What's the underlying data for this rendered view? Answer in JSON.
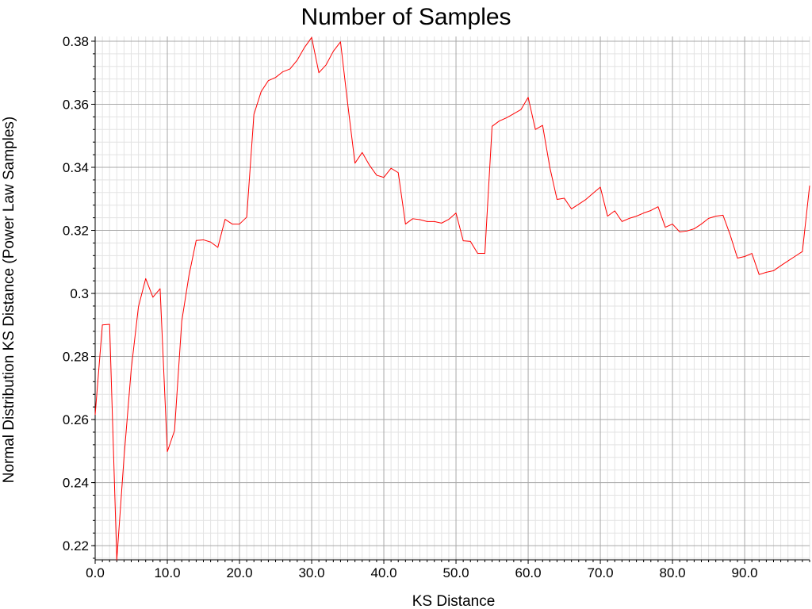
{
  "chart_data": {
    "type": "line",
    "title": "Number of Samples",
    "xlabel": "KS Distance",
    "ylabel": "Normal Distribution KS Distance (Power Law Samples)",
    "xlim": [
      0,
      99
    ],
    "ylim": [
      0.2155,
      0.3815
    ],
    "x_ticks": [
      0,
      10,
      20,
      30,
      40,
      50,
      60,
      70,
      80,
      90
    ],
    "x_tick_labels": [
      "0.0",
      "10.0",
      "20.0",
      "30.0",
      "40.0",
      "50.0",
      "60.0",
      "70.0",
      "80.0",
      "90.0"
    ],
    "y_ticks": [
      0.22,
      0.24,
      0.26,
      0.28,
      0.3,
      0.32,
      0.34,
      0.36,
      0.38
    ],
    "y_tick_labels": [
      "0.22",
      "0.24",
      "0.26",
      "0.28",
      "0.3",
      "0.32",
      "0.34",
      "0.36",
      "0.38"
    ],
    "grid": true,
    "legend": "none",
    "series": [
      {
        "color": "#ff0000",
        "x": [
          0,
          1,
          2,
          3,
          4,
          5,
          6,
          7,
          8,
          9,
          10,
          11,
          12,
          13,
          14,
          15,
          16,
          17,
          18,
          19,
          20,
          21,
          22,
          23,
          24,
          25,
          26,
          27,
          28,
          29,
          30,
          31,
          32,
          33,
          34,
          35,
          36,
          37,
          38,
          39,
          40,
          41,
          42,
          43,
          44,
          45,
          46,
          47,
          48,
          49,
          50,
          51,
          52,
          53,
          54,
          55,
          56,
          57,
          58,
          59,
          60,
          61,
          62,
          63,
          64,
          65,
          66,
          67,
          68,
          69,
          70,
          71,
          72,
          73,
          74,
          75,
          76,
          77,
          78,
          79,
          80,
          81,
          82,
          83,
          84,
          85,
          86,
          87,
          88,
          89,
          90,
          91,
          92,
          93,
          94,
          95,
          96,
          97,
          98,
          99
        ],
        "y": [
          0.2615,
          0.29,
          0.2902,
          0.2155,
          0.248,
          0.276,
          0.2958,
          0.3047,
          0.2988,
          0.3015,
          0.2498,
          0.2565,
          0.2912,
          0.3057,
          0.3168,
          0.317,
          0.3163,
          0.3146,
          0.3235,
          0.322,
          0.322,
          0.3242,
          0.3568,
          0.364,
          0.3675,
          0.3685,
          0.3703,
          0.3712,
          0.374,
          0.378,
          0.3812,
          0.37,
          0.3725,
          0.3768,
          0.3798,
          0.36,
          0.3413,
          0.3447,
          0.3407,
          0.3375,
          0.3368,
          0.3397,
          0.3383,
          0.322,
          0.3237,
          0.3234,
          0.3228,
          0.3228,
          0.3223,
          0.3235,
          0.3255,
          0.3167,
          0.3165,
          0.3127,
          0.3127,
          0.353,
          0.3547,
          0.3557,
          0.357,
          0.3583,
          0.3622,
          0.352,
          0.3533,
          0.34,
          0.3298,
          0.3302,
          0.3268,
          0.3283,
          0.3298,
          0.3318,
          0.3337,
          0.3245,
          0.3262,
          0.3228,
          0.3238,
          0.3245,
          0.3255,
          0.3263,
          0.3275,
          0.321,
          0.322,
          0.3195,
          0.3198,
          0.3205,
          0.322,
          0.3238,
          0.3245,
          0.3248,
          0.3185,
          0.3112,
          0.3117,
          0.3127,
          0.306,
          0.3067,
          0.3072,
          0.3088,
          0.3103,
          0.3118,
          0.3133,
          0.3342
        ]
      }
    ]
  }
}
